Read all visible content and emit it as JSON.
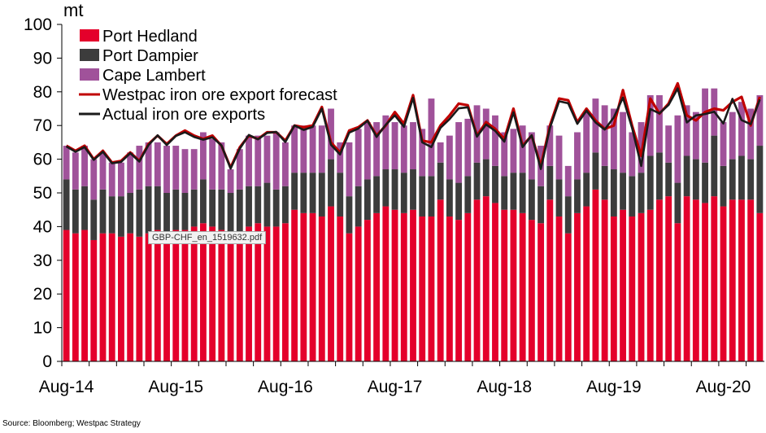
{
  "chart_data": {
    "type": "bar",
    "stacked": true,
    "ylabel": "mt",
    "ylim": [
      0,
      100
    ],
    "yticks": [
      0,
      10,
      20,
      30,
      40,
      50,
      60,
      70,
      80,
      90,
      100
    ],
    "x_tick_labels": [
      "Aug-14",
      "Aug-15",
      "Aug-16",
      "Aug-17",
      "Aug-18",
      "Aug-19",
      "Aug-20"
    ],
    "x_tick_start_indices": [
      0,
      12,
      24,
      36,
      48,
      60,
      72
    ],
    "categories": [
      "Aug-14",
      "Sep-14",
      "Oct-14",
      "Nov-14",
      "Dec-14",
      "Jan-15",
      "Feb-15",
      "Mar-15",
      "Apr-15",
      "May-15",
      "Jun-15",
      "Jul-15",
      "Aug-15",
      "Sep-15",
      "Oct-15",
      "Nov-15",
      "Dec-15",
      "Jan-16",
      "Feb-16",
      "Mar-16",
      "Apr-16",
      "May-16",
      "Jun-16",
      "Jul-16",
      "Aug-16",
      "Sep-16",
      "Oct-16",
      "Nov-16",
      "Dec-16",
      "Jan-17",
      "Feb-17",
      "Mar-17",
      "Apr-17",
      "May-17",
      "Jun-17",
      "Jul-17",
      "Aug-17",
      "Sep-17",
      "Oct-17",
      "Nov-17",
      "Dec-17",
      "Jan-18",
      "Feb-18",
      "Mar-18",
      "Apr-18",
      "May-18",
      "Jun-18",
      "Jul-18",
      "Aug-18",
      "Sep-18",
      "Oct-18",
      "Nov-18",
      "Dec-18",
      "Jan-19",
      "Feb-19",
      "Mar-19",
      "Apr-19",
      "May-19",
      "Jun-19",
      "Jul-19",
      "Aug-19",
      "Sep-19",
      "Oct-19",
      "Nov-19",
      "Dec-19",
      "Jan-20",
      "Feb-20",
      "Mar-20",
      "Apr-20",
      "May-20",
      "Jun-20",
      "Jul-20",
      "Aug-20",
      "Sep-20",
      "Oct-20",
      "Nov-20",
      "Dec-20"
    ],
    "series": [
      {
        "name": "Port Hedland",
        "kind": "bar",
        "color": "#e4002b",
        "values": [
          39,
          38,
          39,
          36,
          38,
          38,
          37,
          38,
          37,
          38,
          39,
          38,
          39,
          39,
          40,
          41,
          40,
          39,
          38,
          37,
          40,
          41,
          40,
          40,
          41,
          45,
          44,
          44,
          43,
          46,
          43,
          38,
          40,
          42,
          44,
          46,
          45,
          44,
          45,
          43,
          43,
          48,
          43,
          42,
          44,
          48,
          49,
          47,
          45,
          45,
          44,
          42,
          41,
          48,
          43,
          38,
          44,
          46,
          51,
          48,
          43,
          45,
          43,
          44,
          45,
          48,
          49,
          41,
          49,
          48,
          47,
          49,
          46,
          48,
          48,
          48,
          44
        ]
      },
      {
        "name": "Port Dampier",
        "kind": "bar",
        "color": "#3c3c3c",
        "values": [
          15,
          13,
          13,
          12,
          13,
          11,
          12,
          12,
          14,
          14,
          13,
          12,
          12,
          11,
          11,
          13,
          11,
          12,
          12,
          14,
          12,
          11,
          13,
          11,
          11,
          11,
          12,
          12,
          13,
          14,
          13,
          11,
          12,
          12,
          11,
          11,
          12,
          12,
          12,
          12,
          12,
          11,
          11,
          11,
          11,
          11,
          11,
          11,
          10,
          11,
          12,
          12,
          11,
          10,
          11,
          11,
          10,
          10,
          11,
          10,
          14,
          11,
          12,
          12,
          16,
          14,
          10,
          12,
          12,
          12,
          12,
          18,
          12,
          12,
          13,
          12,
          20
        ]
      },
      {
        "name": "Cape Lambert",
        "kind": "bar",
        "color": "#a0529a",
        "values": [
          10,
          11,
          12,
          12,
          11,
          10,
          10,
          12,
          13,
          13,
          13,
          14,
          13,
          13,
          12,
          14,
          15,
          14,
          7,
          12,
          15,
          15,
          14,
          17,
          13,
          14,
          14,
          14,
          14,
          15,
          9,
          16,
          17,
          17,
          16,
          16,
          14,
          14,
          14,
          14,
          23,
          6,
          13,
          18,
          17,
          17,
          15,
          15,
          13,
          13,
          14,
          14,
          12,
          12,
          13,
          9,
          14,
          18,
          16,
          18,
          18,
          18,
          13,
          15,
          18,
          17,
          11,
          20,
          15,
          14,
          22,
          14,
          13,
          14,
          16,
          15,
          15
        ]
      },
      {
        "name": "Westpac iron ore export forecast",
        "kind": "line",
        "color": "#c00000",
        "values": [
          64,
          62.5,
          64,
          60,
          62.5,
          59,
          59.5,
          62,
          59.5,
          64.5,
          67,
          64.5,
          67,
          68.5,
          67,
          66,
          67,
          64,
          57.5,
          63.5,
          67,
          66,
          68,
          68,
          65.5,
          70,
          69.5,
          70,
          75.5,
          65,
          62,
          68.5,
          69.5,
          71.5,
          67,
          70,
          74,
          70.5,
          79,
          65.5,
          65,
          70,
          73,
          76.5,
          76,
          67,
          71,
          69,
          66,
          75,
          64,
          67,
          58,
          70,
          78,
          77.5,
          71,
          75,
          71.5,
          69,
          70,
          80.5,
          70,
          61,
          78,
          73.5,
          76.5,
          82.5,
          73,
          71.5,
          74,
          75,
          74.5,
          77,
          78.5,
          70,
          78.5
        ]
      },
      {
        "name": "Actual iron ore exports",
        "kind": "line",
        "color": "#1a1a1a",
        "values": [
          63.8,
          62.2,
          63.6,
          59.8,
          62.2,
          58.8,
          59.2,
          61.8,
          59.3,
          64.2,
          67.1,
          64.2,
          66.9,
          68.0,
          66.6,
          65.8,
          66.5,
          64.1,
          57.2,
          63.1,
          67.2,
          65.9,
          67.8,
          68.1,
          65.1,
          70.0,
          68.7,
          69.6,
          75.0,
          64.3,
          61.4,
          67.9,
          69.1,
          71.4,
          66.6,
          70.2,
          73.0,
          69.6,
          78.2,
          65.0,
          63.6,
          69.3,
          71.9,
          75.1,
          75.4,
          66.7,
          70.3,
          68.4,
          65.2,
          73.9,
          63.6,
          67.1,
          57.1,
          69.3,
          77.2,
          76.6,
          70.5,
          74.4,
          70.9,
          68.8,
          72.4,
          78.3,
          69.3,
          58.0,
          74.9,
          73.6,
          76.1,
          81.0,
          70.9,
          73.0,
          73.4,
          74.1,
          70.6,
          77.9,
          71.6,
          70.4,
          77.7
        ]
      }
    ]
  },
  "source_text": "Source: Bloomberg; Westpac Strategy",
  "overlay_label": "GBP-CHF_en_1519632.pdf"
}
